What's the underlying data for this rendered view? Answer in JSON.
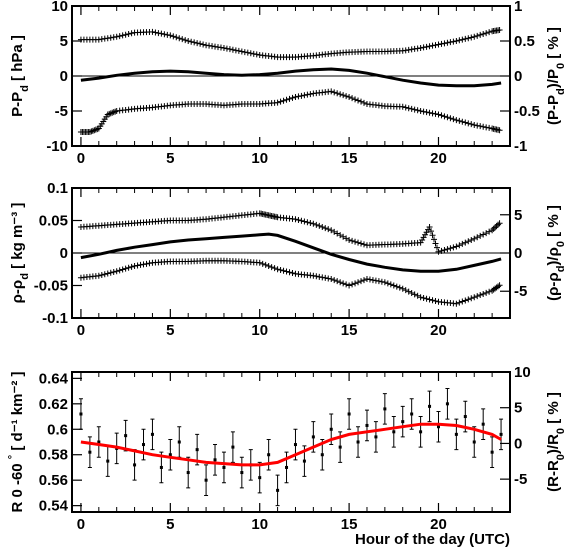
{
  "chart_data": [
    {
      "type": "scatter",
      "panel": "top",
      "ylabel": "P-P",
      "ylabel_sub": "d",
      "ylabel_unit": "[ hPa ]",
      "right_label": "(P-P",
      "right_label_sub1": "d",
      "right_label_mid": ")/P",
      "right_label_sub2": "0",
      "right_label_unit": "[ % ]",
      "xlim": [
        -0.5,
        24
      ],
      "ylim": [
        -10,
        10
      ],
      "right_ylim": [
        -1.0,
        1.0
      ],
      "x_ticks": [
        "0",
        "5",
        "10",
        "15",
        "20"
      ],
      "y_ticks": [
        "-10",
        "-5",
        "0",
        "5",
        "10"
      ],
      "right_ticks": [
        "-1",
        "-0.5",
        "0",
        "0.5",
        "1"
      ],
      "zero_line": true,
      "series": [
        {
          "role": "upper",
          "style": "cross",
          "x": [
            0,
            1,
            2,
            3,
            4,
            5,
            6,
            7,
            8,
            9,
            10,
            11,
            12,
            13,
            14,
            15,
            16,
            17,
            18,
            19,
            20,
            21,
            22,
            23,
            23.5
          ],
          "y": [
            5.2,
            5.2,
            5.6,
            6.2,
            6.3,
            5.8,
            5.0,
            4.4,
            4.0,
            3.5,
            3.0,
            2.7,
            2.7,
            2.9,
            3.2,
            3.4,
            3.5,
            3.5,
            3.6,
            4.0,
            4.5,
            5.0,
            5.6,
            6.4,
            6.6
          ]
        },
        {
          "role": "lower",
          "style": "cross",
          "x": [
            0,
            0.5,
            1,
            1.5,
            2,
            3,
            4,
            5,
            6,
            7,
            8,
            9,
            10,
            11,
            12,
            13,
            14,
            15,
            16,
            17,
            18,
            19,
            20,
            21,
            22,
            23,
            23.5
          ],
          "y": [
            -8.0,
            -8.0,
            -7.5,
            -5.5,
            -5.0,
            -4.7,
            -4.5,
            -4.2,
            -4.0,
            -4.0,
            -4.2,
            -4.0,
            -4.0,
            -3.8,
            -3.0,
            -2.5,
            -2.2,
            -3.0,
            -4.0,
            -4.3,
            -4.4,
            -5.0,
            -5.5,
            -6.3,
            -7.0,
            -7.5,
            -7.8
          ]
        },
        {
          "role": "mean",
          "style": "line",
          "x": [
            0,
            1,
            2,
            3,
            4,
            5,
            6,
            7,
            8,
            9,
            10,
            11,
            12,
            13,
            14,
            15,
            16,
            17,
            18,
            19,
            20,
            21,
            22,
            23,
            23.5
          ],
          "y": [
            -0.6,
            -0.3,
            0.1,
            0.4,
            0.6,
            0.7,
            0.6,
            0.4,
            0.2,
            0.1,
            0.2,
            0.4,
            0.7,
            0.9,
            1.0,
            0.8,
            0.4,
            -0.1,
            -0.6,
            -1.0,
            -1.3,
            -1.4,
            -1.4,
            -1.2,
            -1.0
          ]
        }
      ]
    },
    {
      "type": "scatter",
      "panel": "middle",
      "ylabel": "ρ-ρ",
      "ylabel_sub": "d",
      "ylabel_unit": "[ kg m⁻³ ]",
      "right_label": "(ρ-ρ",
      "right_label_sub1": "d",
      "right_label_mid": ")/ρ",
      "right_label_sub2": "0",
      "right_label_unit": "[ % ]",
      "xlim": [
        -0.5,
        24
      ],
      "ylim": [
        -0.1,
        0.1
      ],
      "right_ylim": [
        -8.5,
        8.5
      ],
      "x_ticks": [
        "0",
        "5",
        "10",
        "15",
        "20"
      ],
      "y_ticks": [
        "-0.1",
        "-0.05",
        "0",
        "0.05",
        "0.1"
      ],
      "right_ticks": [
        "-5",
        "0",
        "5"
      ],
      "zero_line": true,
      "series": [
        {
          "role": "upper",
          "style": "cross",
          "x": [
            0,
            1,
            2,
            3,
            4,
            5,
            6,
            7,
            8,
            9,
            10,
            10.5,
            11,
            12,
            13,
            14,
            15,
            16,
            17,
            18,
            19,
            19.5,
            20,
            21,
            22,
            23,
            23.5
          ],
          "y": [
            0.04,
            0.042,
            0.044,
            0.046,
            0.048,
            0.05,
            0.05,
            0.052,
            0.055,
            0.058,
            0.061,
            0.058,
            0.055,
            0.052,
            0.045,
            0.035,
            0.02,
            0.012,
            0.013,
            0.014,
            0.016,
            0.04,
            0.002,
            0.01,
            0.022,
            0.035,
            0.048
          ]
        },
        {
          "role": "lower",
          "style": "cross",
          "x": [
            0,
            1,
            2,
            3,
            4,
            5,
            6,
            7,
            8,
            9,
            10,
            11,
            12,
            13,
            14,
            15,
            16,
            17,
            18,
            19,
            20,
            21,
            22,
            23,
            23.5
          ],
          "y": [
            -0.038,
            -0.035,
            -0.028,
            -0.02,
            -0.015,
            -0.013,
            -0.013,
            -0.012,
            -0.012,
            -0.013,
            -0.015,
            -0.025,
            -0.032,
            -0.035,
            -0.04,
            -0.05,
            -0.04,
            -0.045,
            -0.055,
            -0.068,
            -0.075,
            -0.078,
            -0.068,
            -0.058,
            -0.048
          ]
        },
        {
          "role": "mean",
          "style": "line",
          "x": [
            0,
            1,
            2,
            3,
            4,
            5,
            6,
            7,
            8,
            9,
            10,
            10.5,
            11,
            12,
            13,
            14,
            15,
            16,
            17,
            18,
            19,
            20,
            21,
            22,
            23,
            23.5
          ],
          "y": [
            -0.007,
            -0.002,
            0.004,
            0.009,
            0.013,
            0.017,
            0.02,
            0.022,
            0.024,
            0.026,
            0.028,
            0.029,
            0.027,
            0.018,
            0.008,
            -0.002,
            -0.01,
            -0.017,
            -0.022,
            -0.026,
            -0.028,
            -0.028,
            -0.025,
            -0.019,
            -0.013,
            -0.009
          ]
        }
      ]
    },
    {
      "type": "scatter",
      "panel": "bottom",
      "ylabel": "R 0 -60 ",
      "ylabel_deg": "°",
      "ylabel_unit": "[ d⁻¹ km⁻² ]",
      "right_label": "(R-R",
      "right_label_sub1": "0",
      "right_label_mid": ")/R",
      "right_label_sub2": "0",
      "right_label_unit": "[ % ]",
      "xlabel": "Hour of the day (UTC)",
      "xlim": [
        -0.5,
        24
      ],
      "ylim": [
        0.535,
        0.645
      ],
      "right_ylim": [
        -9.6,
        10.0
      ],
      "x_ticks": [
        "0",
        "5",
        "10",
        "15",
        "20"
      ],
      "y_ticks": [
        "0.54",
        "0.56",
        "0.58",
        "0.6",
        "0.62",
        "0.64"
      ],
      "right_ticks": [
        "-5",
        "0",
        "5",
        "10"
      ],
      "zero_line": false,
      "fit_color": "#ff0000",
      "fit": {
        "x": [
          0,
          1,
          2,
          3,
          4,
          5,
          6,
          7,
          8,
          9,
          10,
          11,
          12,
          13,
          14,
          15,
          16,
          17,
          18,
          19,
          20,
          21,
          22,
          23,
          23.5
        ],
        "y": [
          0.59,
          0.588,
          0.586,
          0.583,
          0.58,
          0.578,
          0.576,
          0.574,
          0.573,
          0.572,
          0.572,
          0.574,
          0.58,
          0.586,
          0.592,
          0.596,
          0.598,
          0.6,
          0.602,
          0.604,
          0.604,
          0.603,
          0.6,
          0.596,
          0.592
        ]
      },
      "points": {
        "x": [
          0,
          0.5,
          1,
          1.5,
          2,
          2.5,
          3,
          3.5,
          4,
          4.5,
          5,
          5.5,
          6,
          6.5,
          7,
          7.5,
          8,
          8.5,
          9,
          9.5,
          10,
          10.5,
          11,
          11.5,
          12,
          12.5,
          13,
          13.5,
          14,
          14.5,
          15,
          15.5,
          16,
          16.5,
          17,
          17.5,
          18,
          18.5,
          19,
          19.5,
          20,
          20.5,
          21,
          21.5,
          22,
          22.5,
          23,
          23.5
        ],
        "y": [
          0.612,
          0.582,
          0.59,
          0.575,
          0.585,
          0.595,
          0.572,
          0.588,
          0.596,
          0.57,
          0.58,
          0.59,
          0.566,
          0.584,
          0.56,
          0.576,
          0.57,
          0.586,
          0.566,
          0.572,
          0.562,
          0.58,
          0.552,
          0.57,
          0.588,
          0.575,
          0.594,
          0.58,
          0.6,
          0.586,
          0.612,
          0.59,
          0.603,
          0.594,
          0.616,
          0.598,
          0.606,
          0.612,
          0.598,
          0.618,
          0.602,
          0.62,
          0.596,
          0.61,
          0.59,
          0.604,
          0.582,
          0.596
        ],
        "err": [
          0.012,
          0.012,
          0.012,
          0.012,
          0.012,
          0.012,
          0.012,
          0.012,
          0.012,
          0.012,
          0.012,
          0.012,
          0.012,
          0.012,
          0.012,
          0.012,
          0.012,
          0.012,
          0.012,
          0.012,
          0.012,
          0.012,
          0.012,
          0.012,
          0.012,
          0.012,
          0.012,
          0.012,
          0.012,
          0.012,
          0.012,
          0.012,
          0.012,
          0.012,
          0.012,
          0.012,
          0.012,
          0.012,
          0.012,
          0.012,
          0.012,
          0.012,
          0.012,
          0.012,
          0.012,
          0.012,
          0.012,
          0.012
        ]
      }
    }
  ]
}
